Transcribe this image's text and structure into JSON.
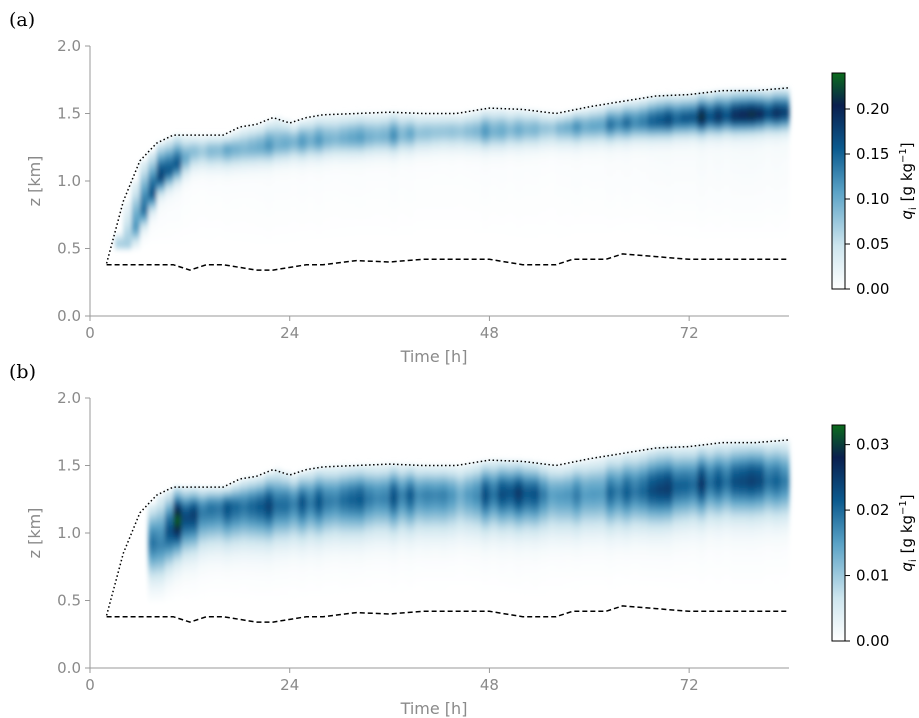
{
  "chart_data": [
    {
      "type": "heatmap",
      "panel_label": "(a)",
      "xlabel": "Time  [h]",
      "ylabel": "z  [km]",
      "xlim": [
        0,
        84
      ],
      "ylim": [
        0.0,
        2.0
      ],
      "xticks": [
        0,
        24,
        48,
        72
      ],
      "yticks": [
        "0.0",
        "0.5",
        "1.0",
        "1.5",
        "2.0"
      ],
      "colorbar": {
        "label_var": "q",
        "label_sub": "i",
        "label_units": "[g kg",
        "label_sup": "−1",
        "label_close": "]",
        "range": [
          0.0,
          0.24
        ],
        "ticks": [
          "0.00",
          "0.05",
          "0.10",
          "0.15",
          "0.20"
        ],
        "tick_values": [
          0.0,
          0.05,
          0.1,
          0.15,
          0.2
        ],
        "colormap": [
          "#ffffff",
          "#cde5ee",
          "#5aa2c6",
          "#0b5a8e",
          "#0a1f4e",
          "#0b6b1c"
        ]
      },
      "cloud_top": {
        "t": [
          2,
          4,
          6,
          8,
          10,
          12,
          16,
          18,
          20,
          22,
          24,
          26,
          28,
          32,
          36,
          40,
          44,
          48,
          52,
          56,
          60,
          64,
          68,
          72,
          76,
          80,
          84
        ],
        "z": [
          0.39,
          0.85,
          1.15,
          1.28,
          1.34,
          1.34,
          1.34,
          1.4,
          1.42,
          1.47,
          1.43,
          1.47,
          1.49,
          1.5,
          1.51,
          1.5,
          1.5,
          1.54,
          1.53,
          1.5,
          1.55,
          1.59,
          1.63,
          1.64,
          1.67,
          1.67,
          1.69
        ]
      },
      "cloud_base": {
        "t": [
          2,
          10,
          12,
          14,
          16,
          20,
          22,
          26,
          28,
          32,
          36,
          40,
          44,
          48,
          52,
          56,
          58,
          62,
          64,
          68,
          72,
          76,
          80,
          84
        ],
        "z": [
          0.38,
          0.38,
          0.34,
          0.38,
          0.38,
          0.34,
          0.34,
          0.38,
          0.38,
          0.41,
          0.4,
          0.42,
          0.42,
          0.42,
          0.38,
          0.38,
          0.42,
          0.42,
          0.46,
          0.44,
          0.42,
          0.42,
          0.42,
          0.42
        ]
      },
      "ice_layer": {
        "t": [
          4,
          8,
          12,
          18,
          24,
          30,
          36,
          42,
          48,
          54,
          60,
          66,
          72,
          78,
          84
        ],
        "z": [
          0.55,
          1.05,
          1.23,
          1.25,
          1.3,
          1.33,
          1.35,
          1.38,
          1.38,
          1.4,
          1.42,
          1.45,
          1.48,
          1.5,
          1.52
        ],
        "q": [
          0.08,
          0.22,
          0.09,
          0.11,
          0.12,
          0.11,
          0.12,
          0.08,
          0.12,
          0.09,
          0.13,
          0.16,
          0.2,
          0.22,
          0.21
        ]
      }
    },
    {
      "type": "heatmap",
      "panel_label": "(b)",
      "xlabel": "Time  [h]",
      "ylabel": "z  [km]",
      "xlim": [
        0,
        84
      ],
      "ylim": [
        0.0,
        2.0
      ],
      "xticks": [
        0,
        24,
        48,
        72
      ],
      "yticks": [
        "0.0",
        "0.5",
        "1.0",
        "1.5",
        "2.0"
      ],
      "colorbar": {
        "label_var": "q",
        "label_sub": "i",
        "label_units": "[g kg",
        "label_sup": "−1",
        "label_close": "]",
        "range": [
          0.0,
          0.033
        ],
        "ticks": [
          "0.00",
          "0.01",
          "0.02",
          "0.03"
        ],
        "tick_values": [
          0.0,
          0.01,
          0.02,
          0.03
        ],
        "colormap": [
          "#ffffff",
          "#cde5ee",
          "#5aa2c6",
          "#0b5a8e",
          "#0a1f4e",
          "#0b6b1c"
        ]
      },
      "cloud_top": {
        "t": [
          2,
          4,
          6,
          8,
          10,
          12,
          16,
          18,
          20,
          22,
          24,
          26,
          28,
          32,
          36,
          40,
          44,
          48,
          52,
          56,
          60,
          64,
          68,
          72,
          76,
          80,
          84
        ],
        "z": [
          0.39,
          0.85,
          1.15,
          1.28,
          1.34,
          1.34,
          1.34,
          1.4,
          1.42,
          1.47,
          1.43,
          1.47,
          1.49,
          1.5,
          1.51,
          1.5,
          1.5,
          1.54,
          1.53,
          1.5,
          1.55,
          1.59,
          1.63,
          1.64,
          1.67,
          1.67,
          1.69
        ]
      },
      "cloud_base": {
        "t": [
          2,
          10,
          12,
          14,
          16,
          20,
          22,
          26,
          28,
          32,
          36,
          40,
          44,
          48,
          52,
          56,
          58,
          62,
          64,
          68,
          72,
          76,
          80,
          84
        ],
        "z": [
          0.38,
          0.38,
          0.34,
          0.38,
          0.38,
          0.34,
          0.34,
          0.38,
          0.38,
          0.41,
          0.4,
          0.42,
          0.42,
          0.42,
          0.38,
          0.38,
          0.42,
          0.42,
          0.46,
          0.44,
          0.42,
          0.42,
          0.42,
          0.42
        ]
      },
      "ice_layer": {
        "t": [
          8,
          10,
          14,
          20,
          26,
          32,
          38,
          44,
          50,
          56,
          62,
          68,
          74,
          80,
          84
        ],
        "z": [
          0.95,
          1.12,
          1.2,
          1.22,
          1.25,
          1.28,
          1.3,
          1.3,
          1.32,
          1.3,
          1.32,
          1.35,
          1.4,
          1.42,
          1.4
        ],
        "q": [
          0.022,
          0.031,
          0.021,
          0.024,
          0.022,
          0.022,
          0.022,
          0.016,
          0.028,
          0.017,
          0.02,
          0.026,
          0.024,
          0.026,
          0.02
        ]
      }
    }
  ]
}
